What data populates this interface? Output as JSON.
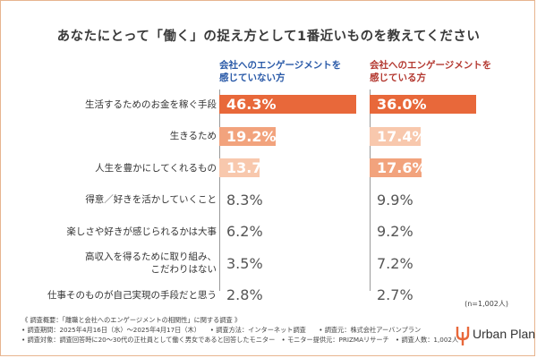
{
  "chart_data": {
    "type": "bar",
    "title": "あなたにとって「働く」の捉え方として1番近いものを教えてください",
    "categories": [
      [
        "生活するためのお金を稼ぐ手段"
      ],
      [
        "生きるため"
      ],
      [
        "人生を豊かにしてくれるもの"
      ],
      [
        "得意／好きを活かしていくこと"
      ],
      [
        "楽しさや好きが感じられるかは大事"
      ],
      [
        "高収入を得るために取り組み、",
        "こだわりはない"
      ],
      [
        "仕事そのものが自己実現の手段だと思う"
      ]
    ],
    "series": [
      {
        "name": "会社へのエンゲージメントを感じていない方",
        "header_lines": [
          "会社へのエンゲージメントを",
          "感じていない方"
        ],
        "values": [
          46.3,
          19.2,
          13.7,
          8.3,
          6.2,
          3.5,
          2.8
        ],
        "labels": [
          "46.3%",
          "19.2%",
          "13.7%",
          "8.3%",
          "6.2%",
          "3.5%",
          "2.8%"
        ]
      },
      {
        "name": "会社へのエンゲージメントを感じている方",
        "header_lines": [
          "会社へのエンゲージメントを",
          "感じている方"
        ],
        "values": [
          36.0,
          17.4,
          17.6,
          9.9,
          9.2,
          7.2,
          2.7
        ],
        "labels": [
          "36.0%",
          "17.4%",
          "17.6%",
          "9.9%",
          "9.2%",
          "7.2%",
          "2.7%"
        ]
      }
    ],
    "highlight_ranks": 3,
    "colors": {
      "rank1": "#e8683a",
      "rank2": "#f2a37d",
      "rank3": "#f8c8ad",
      "header_blue": "#2a5aa8",
      "header_red": "#b43a32",
      "axis": "#9a9a9a"
    },
    "xlim": [
      0,
      50
    ]
  },
  "note_n": "(n=1,002人)",
  "footer": [
    "《 調査概要：「離職と会社へのエンゲージメントの相関性」に関する調査 》",
    "• 調査期間：2025年4月16日（水）～2025年4月17日（木）　　• 調査方法：インターネット調査　　• 調査元：株式会社アーバンプラン",
    "• 調査対象：調査回答時に20～30代の正社員として働く男女であると回答したモニター　• モニター提供元：PRIZMAリサーチ　• 調査人数：1,002人"
  ],
  "logo": {
    "text": "Urban Plan"
  }
}
